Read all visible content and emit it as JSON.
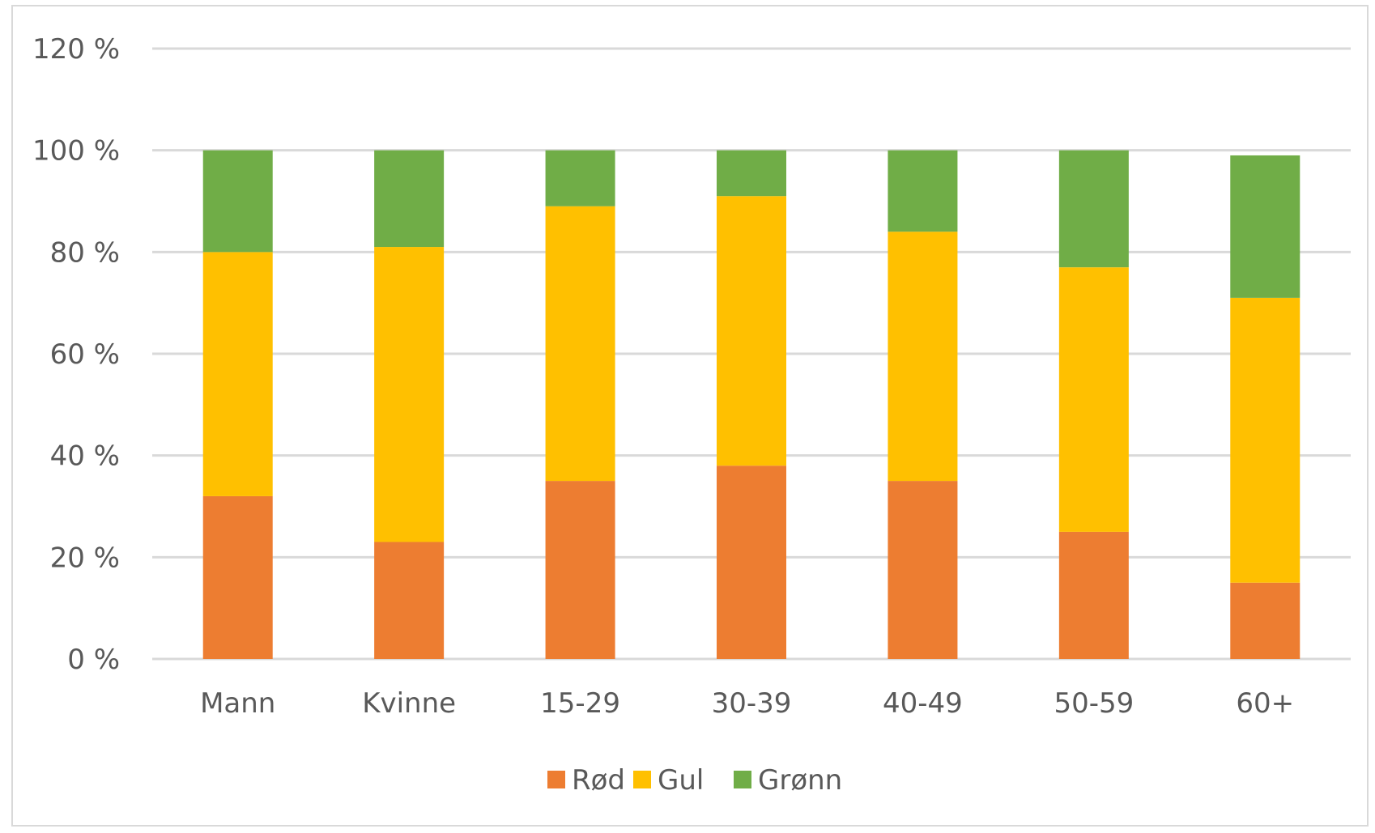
{
  "chart_data": {
    "type": "bar",
    "stacked": true,
    "categories": [
      "Mann",
      "Kvinne",
      "15-29",
      "30-39",
      "40-49",
      "50-59",
      "60+"
    ],
    "series": [
      {
        "name": "Rød",
        "color": "#ed7d31",
        "values": [
          32,
          23,
          35,
          38,
          35,
          25,
          15
        ]
      },
      {
        "name": "Gul",
        "color": "#ffc000",
        "values": [
          48,
          58,
          54,
          53,
          49,
          52,
          56
        ]
      },
      {
        "name": "Grønn",
        "color": "#70ad47",
        "values": [
          20,
          19,
          11,
          9,
          16,
          23,
          28
        ]
      }
    ],
    "ylim": [
      0,
      120
    ],
    "yticks": [
      0,
      20,
      40,
      60,
      80,
      100,
      120
    ],
    "ytick_labels": [
      "0 %",
      "20 %",
      "40 %",
      "60 %",
      "80 %",
      "100 %",
      "120 %"
    ],
    "grid": true,
    "legend_position": "bottom",
    "title": "",
    "xlabel": "",
    "ylabel": "",
    "gridline_color": "#d9d9d9",
    "text_color": "#595959"
  }
}
